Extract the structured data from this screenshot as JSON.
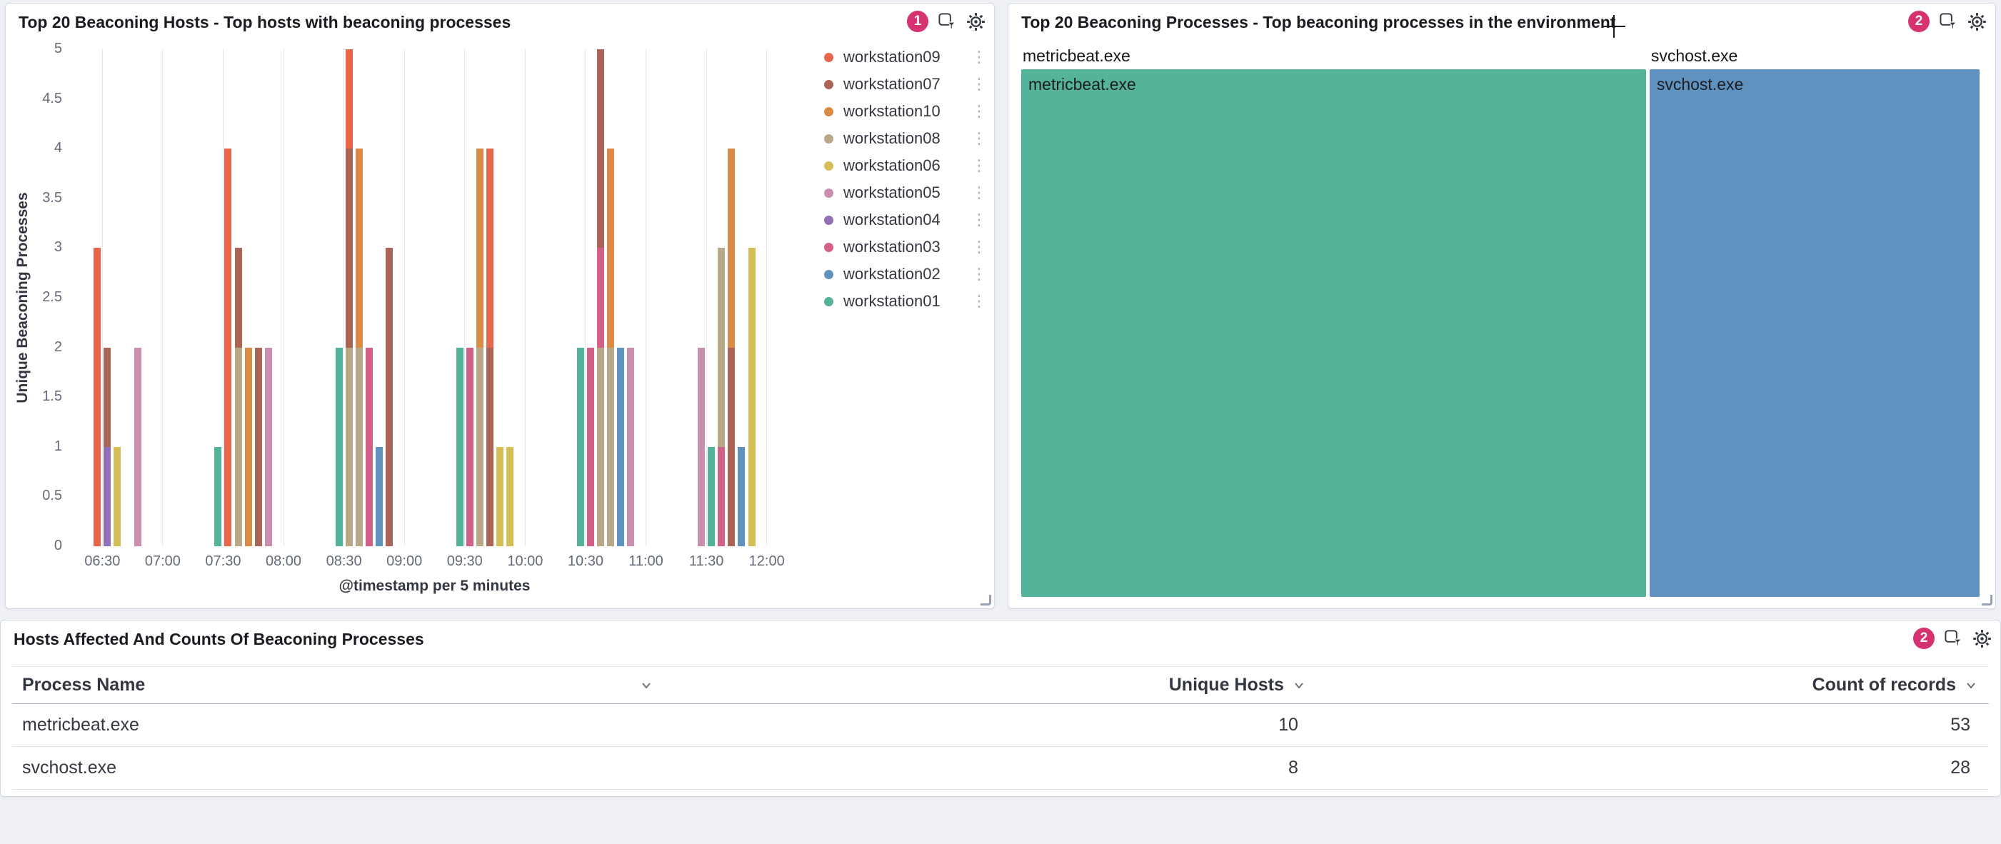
{
  "colors": {
    "accent_badge": "#D6326F",
    "panel_border": "#D3DAE6",
    "background": "#EFF1F6"
  },
  "panels": {
    "hosts": {
      "title": "Top 20 Beaconing Hosts - Top hosts with beaconing processes",
      "badge": "1"
    },
    "processes": {
      "title": "Top 20 Beaconing Processes - Top beaconing processes in the environment",
      "badge": "2"
    },
    "table": {
      "title": "Hosts Affected And Counts Of Beaconing Processes",
      "badge": "2"
    }
  },
  "chart_data": [
    {
      "type": "bar",
      "stacked": true,
      "title": "Top 20 Beaconing Hosts - Top hosts with beaconing processes",
      "xlabel": "@timestamp per 5 minutes",
      "ylabel": "Unique Beaconing Processes",
      "ylim": [
        0,
        5
      ],
      "y_ticks": [
        0,
        0.5,
        1,
        1.5,
        2,
        2.5,
        3,
        3.5,
        4,
        4.5,
        5
      ],
      "x_ticks": [
        "06:30",
        "07:00",
        "07:30",
        "08:00",
        "08:30",
        "09:00",
        "09:30",
        "10:00",
        "10:30",
        "11:00",
        "11:30",
        "12:00"
      ],
      "x_domain": [
        "06:15",
        "12:15"
      ],
      "grid": "vertical-only",
      "legend_position": "right",
      "series": [
        {
          "name": "workstation09",
          "color": "#E7664C"
        },
        {
          "name": "workstation07",
          "color": "#AA6556"
        },
        {
          "name": "workstation10",
          "color": "#DA8B45"
        },
        {
          "name": "workstation08",
          "color": "#B9A888"
        },
        {
          "name": "workstation06",
          "color": "#D6BF57"
        },
        {
          "name": "workstation05",
          "color": "#CA8EAE"
        },
        {
          "name": "workstation04",
          "color": "#9170B8"
        },
        {
          "name": "workstation03",
          "color": "#D36086"
        },
        {
          "name": "workstation02",
          "color": "#6092C0"
        },
        {
          "name": "workstation01",
          "color": "#54B399"
        }
      ],
      "bars": [
        {
          "time": "06:25",
          "stack": [
            [
              "workstation09",
              3
            ]
          ]
        },
        {
          "time": "06:30",
          "stack": [
            [
              "workstation04",
              1
            ],
            [
              "workstation07",
              1
            ]
          ]
        },
        {
          "time": "06:35",
          "stack": [
            [
              "workstation06",
              1
            ]
          ]
        },
        {
          "time": "06:45",
          "stack": [
            [
              "workstation05",
              2
            ]
          ]
        },
        {
          "time": "07:25",
          "stack": [
            [
              "workstation01",
              1
            ]
          ]
        },
        {
          "time": "07:30",
          "stack": [
            [
              "workstation09",
              4
            ]
          ]
        },
        {
          "time": "07:35",
          "stack": [
            [
              "workstation08",
              2
            ],
            [
              "workstation07",
              1
            ]
          ]
        },
        {
          "time": "07:40",
          "stack": [
            [
              "workstation10",
              2
            ]
          ]
        },
        {
          "time": "07:45",
          "stack": [
            [
              "workstation07",
              2
            ]
          ]
        },
        {
          "time": "07:50",
          "stack": [
            [
              "workstation05",
              2
            ]
          ]
        },
        {
          "time": "08:25",
          "stack": [
            [
              "workstation01",
              2
            ]
          ]
        },
        {
          "time": "08:30",
          "stack": [
            [
              "workstation08",
              2
            ],
            [
              "workstation07",
              2
            ],
            [
              "workstation09",
              1
            ]
          ]
        },
        {
          "time": "08:35",
          "stack": [
            [
              "workstation08",
              2
            ],
            [
              "workstation10",
              2
            ]
          ]
        },
        {
          "time": "08:40",
          "stack": [
            [
              "workstation03",
              2
            ]
          ]
        },
        {
          "time": "08:45",
          "stack": [
            [
              "workstation02",
              1
            ]
          ]
        },
        {
          "time": "08:50",
          "stack": [
            [
              "workstation07",
              3
            ]
          ]
        },
        {
          "time": "09:25",
          "stack": [
            [
              "workstation01",
              2
            ]
          ]
        },
        {
          "time": "09:30",
          "stack": [
            [
              "workstation03",
              2
            ]
          ]
        },
        {
          "time": "09:35",
          "stack": [
            [
              "workstation08",
              2
            ],
            [
              "workstation10",
              2
            ]
          ]
        },
        {
          "time": "09:40",
          "stack": [
            [
              "workstation07",
              2
            ],
            [
              "workstation09",
              2
            ]
          ]
        },
        {
          "time": "09:45",
          "stack": [
            [
              "workstation06",
              1
            ]
          ]
        },
        {
          "time": "09:50",
          "stack": [
            [
              "workstation06",
              1
            ]
          ]
        },
        {
          "time": "10:25",
          "stack": [
            [
              "workstation01",
              2
            ]
          ]
        },
        {
          "time": "10:30",
          "stack": [
            [
              "workstation03",
              2
            ]
          ]
        },
        {
          "time": "10:35",
          "stack": [
            [
              "workstation08",
              2
            ],
            [
              "workstation03",
              1
            ],
            [
              "workstation07",
              2
            ]
          ]
        },
        {
          "time": "10:40",
          "stack": [
            [
              "workstation08",
              2
            ],
            [
              "workstation10",
              2
            ]
          ]
        },
        {
          "time": "10:45",
          "stack": [
            [
              "workstation02",
              2
            ]
          ]
        },
        {
          "time": "10:50",
          "stack": [
            [
              "workstation05",
              2
            ]
          ]
        },
        {
          "time": "11:25",
          "stack": [
            [
              "workstation05",
              2
            ]
          ]
        },
        {
          "time": "11:30",
          "stack": [
            [
              "workstation01",
              1
            ]
          ]
        },
        {
          "time": "11:35",
          "stack": [
            [
              "workstation03",
              1
            ],
            [
              "workstation08",
              2
            ]
          ]
        },
        {
          "time": "11:40",
          "stack": [
            [
              "workstation07",
              2
            ],
            [
              "workstation10",
              2
            ]
          ]
        },
        {
          "time": "11:45",
          "stack": [
            [
              "workstation02",
              1
            ]
          ]
        },
        {
          "time": "11:50",
          "stack": [
            [
              "workstation06",
              3
            ]
          ]
        }
      ]
    },
    {
      "type": "treemap",
      "title": "Top 20 Beaconing Processes - Top beaconing processes in the environment",
      "items": [
        {
          "label": "metricbeat.exe",
          "value": 53,
          "color": "#54B399"
        },
        {
          "label": "svchost.exe",
          "value": 28,
          "color": "#6092C0"
        }
      ]
    },
    {
      "type": "table",
      "title": "Hosts Affected And Counts Of Beaconing Processes",
      "columns": [
        "Process Name",
        "Unique Hosts",
        "Count of records"
      ],
      "rows": [
        [
          "metricbeat.exe",
          "10",
          "53"
        ],
        [
          "svchost.exe",
          "8",
          "28"
        ]
      ]
    }
  ]
}
